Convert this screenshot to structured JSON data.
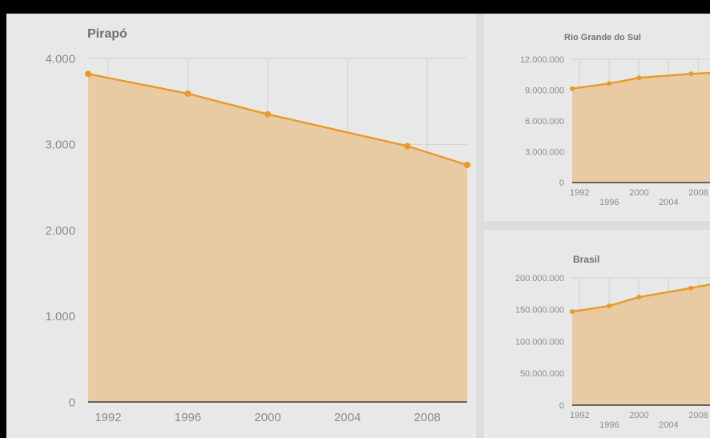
{
  "colors": {
    "line": "#e89a2a",
    "area": "#e8cba2",
    "panel_bg": "#e8e8e8"
  },
  "chart_data": [
    {
      "type": "area",
      "title": "Pirapó",
      "x": [
        1991,
        1996,
        2000,
        2007,
        2010
      ],
      "values": [
        3820,
        3590,
        3350,
        2980,
        2760
      ],
      "x_ticks": [
        "1992",
        "1996",
        "2000",
        "2004",
        "2008"
      ],
      "y_ticks": [
        "0",
        "1.000",
        "2.000",
        "3.000",
        "4.000"
      ],
      "xlim": [
        1991,
        2010
      ],
      "ylim": [
        0,
        4000
      ],
      "grid": true,
      "legend": "none"
    },
    {
      "type": "area",
      "title": "Rio Grande do Sul",
      "x": [
        1991,
        1996,
        2000,
        2007,
        2010
      ],
      "values": [
        9140000,
        9640000,
        10190000,
        10580000,
        10690000
      ],
      "x_ticks": [
        "1992",
        "1996",
        "2000",
        "2004",
        "2008"
      ],
      "y_ticks": [
        "0",
        "3.000.000",
        "6.000.000",
        "9.000.000",
        "12.000.000"
      ],
      "xlim": [
        1991,
        2010
      ],
      "ylim": [
        0,
        12000000
      ],
      "grid": true,
      "legend": "none"
    },
    {
      "type": "area",
      "title": "Brasil",
      "x": [
        1991,
        1996,
        2000,
        2007,
        2010
      ],
      "values": [
        146800000,
        156000000,
        169800000,
        183900000,
        190700000
      ],
      "x_ticks": [
        "1992",
        "1996",
        "2000",
        "2004",
        "2008"
      ],
      "y_ticks": [
        "0",
        "50.000.000",
        "100.000.000",
        "150.000.000",
        "200.000.000"
      ],
      "xlim": [
        1991,
        2010
      ],
      "ylim": [
        0,
        200000000
      ],
      "grid": true,
      "legend": "none"
    }
  ]
}
